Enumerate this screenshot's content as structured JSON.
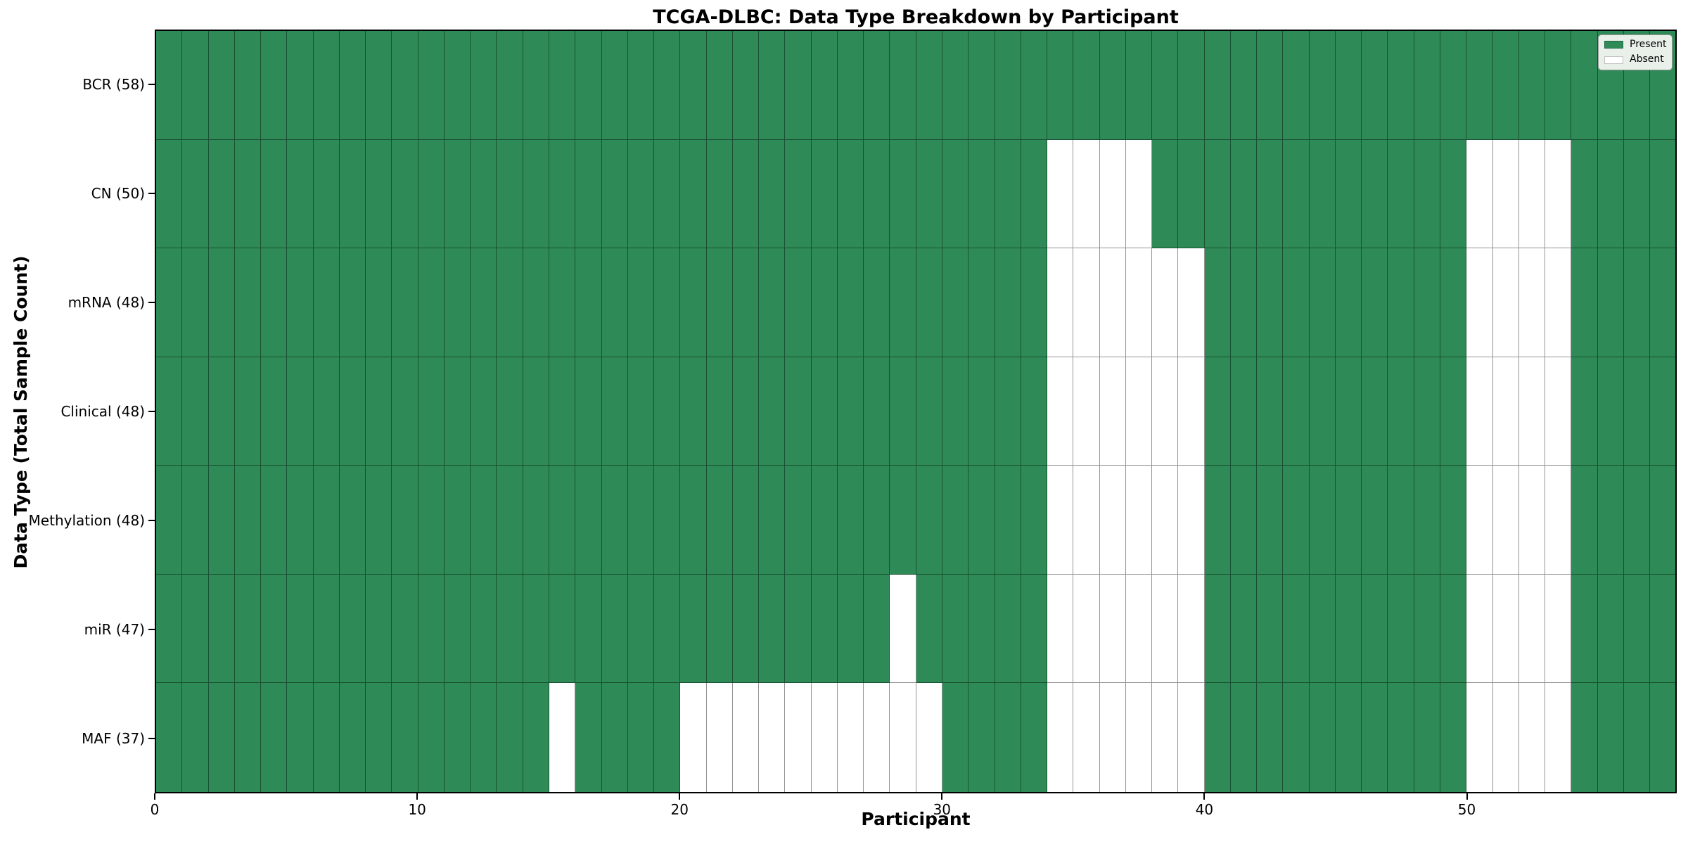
{
  "chart_data": {
    "type": "heatmap",
    "title": "TCGA-DLBC: Data Type Breakdown by Participant",
    "xlabel": "Participant",
    "ylabel": "Data Type (Total Sample Count)",
    "n_participants": 58,
    "x_ticks": [
      0,
      10,
      20,
      30,
      40,
      50
    ],
    "rows": [
      {
        "label": "BCR (58)",
        "data_type": "BCR",
        "total": 58,
        "absent_participants": []
      },
      {
        "label": "CN (50)",
        "data_type": "CN",
        "total": 50,
        "absent_participants": [
          34,
          35,
          36,
          37,
          50,
          51,
          52,
          53
        ]
      },
      {
        "label": "mRNA (48)",
        "data_type": "mRNA",
        "total": 48,
        "absent_participants": [
          34,
          35,
          36,
          37,
          38,
          39,
          50,
          51,
          52,
          53
        ]
      },
      {
        "label": "Clinical (48)",
        "data_type": "Clinical",
        "total": 48,
        "absent_participants": [
          34,
          35,
          36,
          37,
          38,
          39,
          50,
          51,
          52,
          53
        ]
      },
      {
        "label": "Methylation (48)",
        "data_type": "Methylation",
        "total": 48,
        "absent_participants": [
          34,
          35,
          36,
          37,
          38,
          39,
          50,
          51,
          52,
          53
        ]
      },
      {
        "label": "miR (47)",
        "data_type": "miR",
        "total": 47,
        "absent_participants": [
          28,
          34,
          35,
          36,
          37,
          38,
          39,
          50,
          51,
          52,
          53
        ]
      },
      {
        "label": "MAF (37)",
        "data_type": "MAF",
        "total": 37,
        "absent_participants": [
          15,
          20,
          21,
          22,
          23,
          24,
          25,
          26,
          27,
          28,
          29,
          34,
          35,
          36,
          37,
          38,
          39,
          50,
          51,
          52,
          53
        ]
      }
    ],
    "legend": [
      {
        "label": "Present",
        "color": "#2E8B57"
      },
      {
        "label": "Absent",
        "color": "#FFFFFF"
      }
    ],
    "colors": {
      "present": "#2E8B57",
      "absent": "#FFFFFF",
      "cell_border": "rgba(0,0,0,0.42)",
      "axis": "#000000",
      "legend_bg": "#e9f0e9"
    }
  }
}
